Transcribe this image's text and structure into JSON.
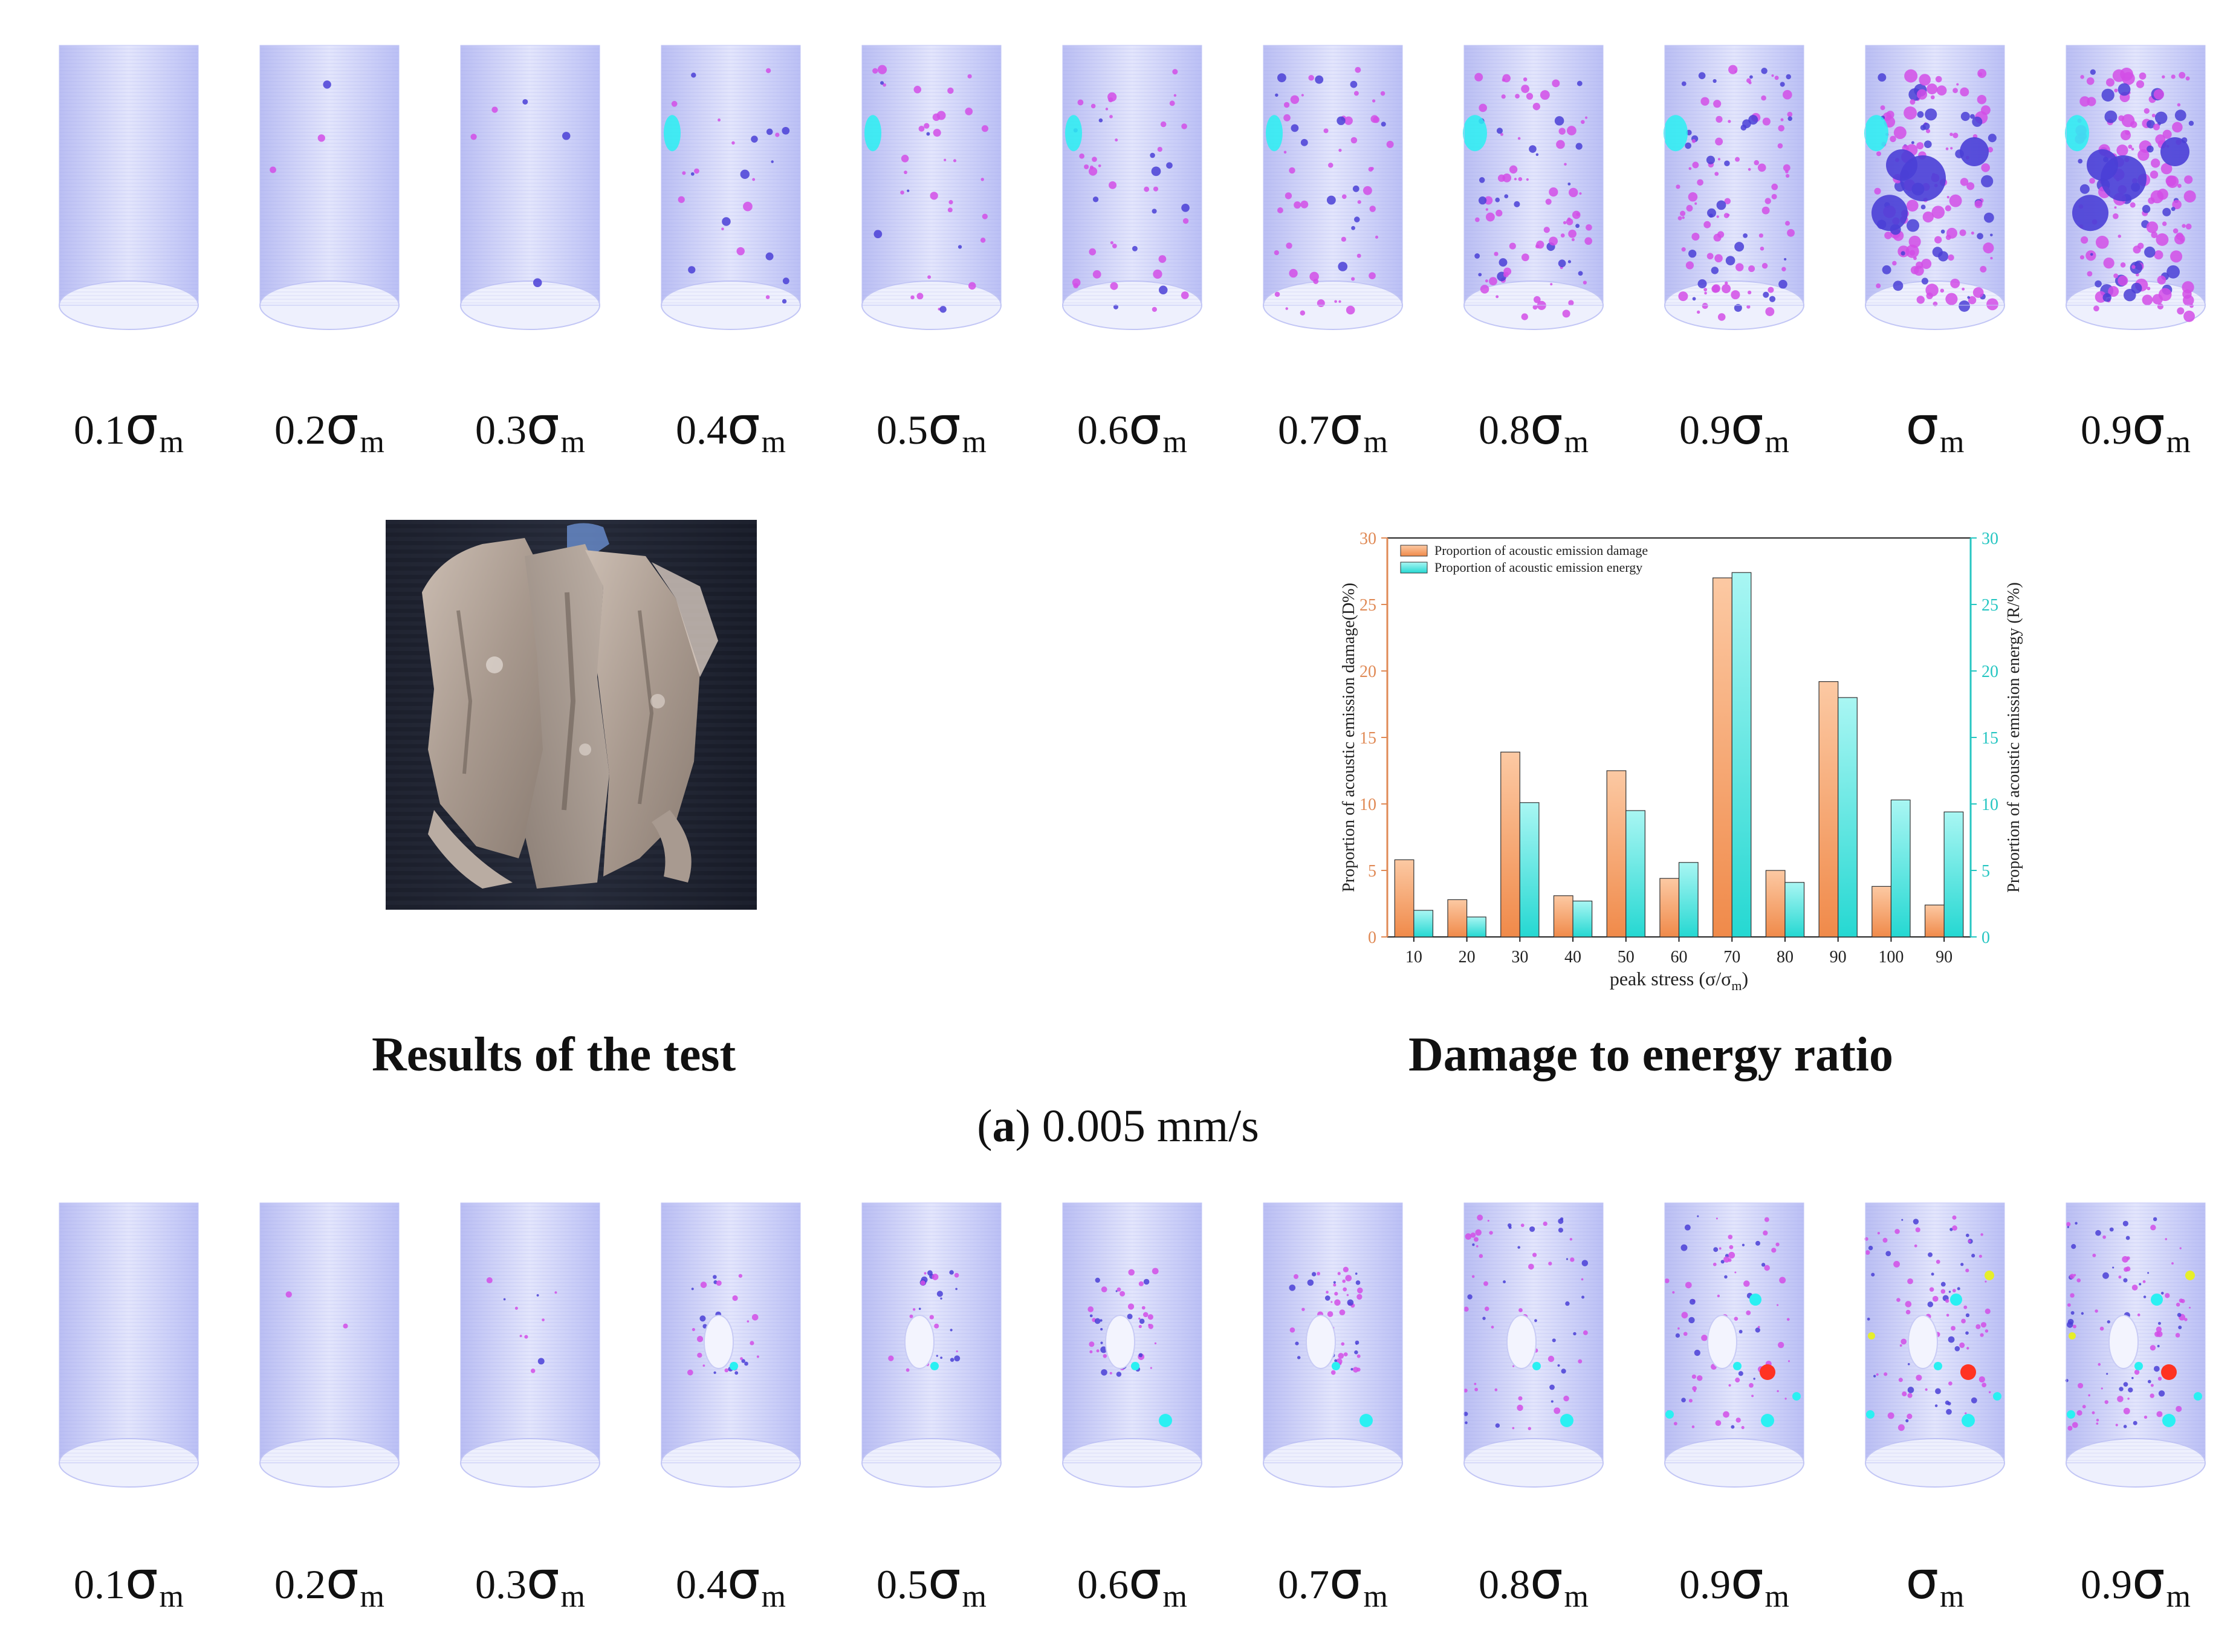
{
  "rows": [
    {
      "stage_labels": [
        {
          "coef": "0.1",
          "sym": "σ",
          "sub": "m"
        },
        {
          "coef": "0.2",
          "sym": "σ",
          "sub": "m"
        },
        {
          "coef": "0.3",
          "sym": "σ",
          "sub": "m"
        },
        {
          "coef": "0.4",
          "sym": "σ",
          "sub": "m"
        },
        {
          "coef": "0.5",
          "sym": "σ",
          "sub": "m"
        },
        {
          "coef": "0.6",
          "sym": "σ",
          "sub": "m"
        },
        {
          "coef": "0.7",
          "sym": "σ",
          "sub": "m"
        },
        {
          "coef": "0.8",
          "sym": "σ",
          "sub": "m"
        },
        {
          "coef": "0.9",
          "sym": "σ",
          "sub": "m"
        },
        {
          "coef": "",
          "sym": "σ",
          "sub": "m"
        },
        {
          "coef": "0.9",
          "sym": "σ",
          "sub": "m"
        }
      ]
    },
    {
      "stage_labels": [
        {
          "coef": "0.1",
          "sym": "σ",
          "sub": "m"
        },
        {
          "coef": "0.2",
          "sym": "σ",
          "sub": "m"
        },
        {
          "coef": "0.3",
          "sym": "σ",
          "sub": "m"
        },
        {
          "coef": "0.4",
          "sym": "σ",
          "sub": "m"
        },
        {
          "coef": "0.5",
          "sym": "σ",
          "sub": "m"
        },
        {
          "coef": "0.6",
          "sym": "σ",
          "sub": "m"
        },
        {
          "coef": "0.7",
          "sym": "σ",
          "sub": "m"
        },
        {
          "coef": "0.8",
          "sym": "σ",
          "sub": "m"
        },
        {
          "coef": "0.9",
          "sym": "σ",
          "sub": "m"
        },
        {
          "coef": "",
          "sym": "σ",
          "sub": "m"
        },
        {
          "coef": "0.9",
          "sym": "σ",
          "sub": "m"
        }
      ]
    }
  ],
  "results_title": "Results of the test",
  "ratio_title": "Damage to energy ratio",
  "caption": {
    "letter": "a",
    "open": "(",
    "close": ")",
    "rest": " 0.005 mm/s"
  },
  "colors": {
    "cylinder": "#b9bdf4",
    "event_small": "#d24ee6",
    "event_mid": "#4a3fd6",
    "event_large": "#2af0f2",
    "event_red": "#ff3322",
    "event_yellow": "#e6ee2a",
    "damage_bar": "#f08a4a",
    "energy_bar": "#25d8d2"
  },
  "chart_data": {
    "type": "bar",
    "categories": [
      "10",
      "20",
      "30",
      "40",
      "50",
      "60",
      "70",
      "80",
      "90",
      "100",
      "90"
    ],
    "series": [
      {
        "name": "Proportion of acoustic emission damage",
        "axis": "left",
        "values": [
          5.8,
          2.8,
          13.9,
          3.1,
          12.5,
          4.4,
          27.0,
          5.0,
          19.2,
          3.8,
          2.4
        ]
      },
      {
        "name": "Proportion of acoustic emission energy",
        "axis": "right",
        "values": [
          2.0,
          1.5,
          10.1,
          2.7,
          9.5,
          5.6,
          27.4,
          4.1,
          18.0,
          10.3,
          9.4
        ]
      }
    ],
    "xlabel": "peak stress (σ/σ",
    "xlabel_sub": "m",
    "xlabel_close": ")",
    "ylabel": "Proportion of acoustic emission damage(D%)",
    "y2label": "Proportion of acoustic emission energy (R/%)",
    "ylim": [
      0,
      30
    ],
    "y2lim": [
      0,
      30
    ],
    "yticks": [
      0,
      5,
      10,
      15,
      20,
      25,
      30
    ],
    "legend_position": "top-left",
    "grid": false
  }
}
